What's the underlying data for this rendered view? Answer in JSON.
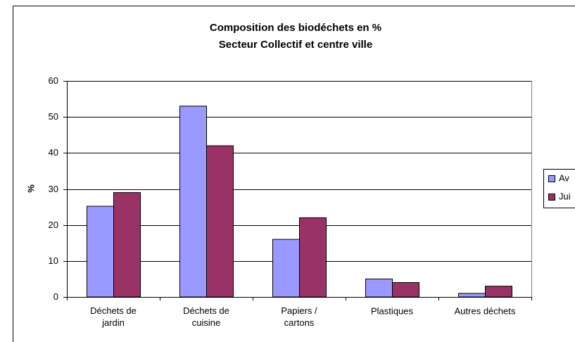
{
  "chart_data": {
    "type": "bar",
    "title": "Composition des biodéchets en %",
    "subtitle": "Secteur  Collectif et centre ville",
    "y_label": "%",
    "categories": [
      "Déchets de\njardin",
      "Déchets de\ncuisine",
      "Papiers /\ncartons",
      "Plastiques",
      "Autres déchets"
    ],
    "series": [
      {
        "name": "Av",
        "color": "#9999ff",
        "values": [
          25.2,
          53,
          16,
          5,
          1
        ]
      },
      {
        "name": "Jui",
        "color": "#993366",
        "values": [
          29,
          42,
          22,
          4,
          3
        ]
      }
    ],
    "ylim": [
      0,
      60
    ],
    "yticks": [
      0,
      10,
      20,
      30,
      40,
      50,
      60
    ],
    "grid": true,
    "legend": "right"
  }
}
